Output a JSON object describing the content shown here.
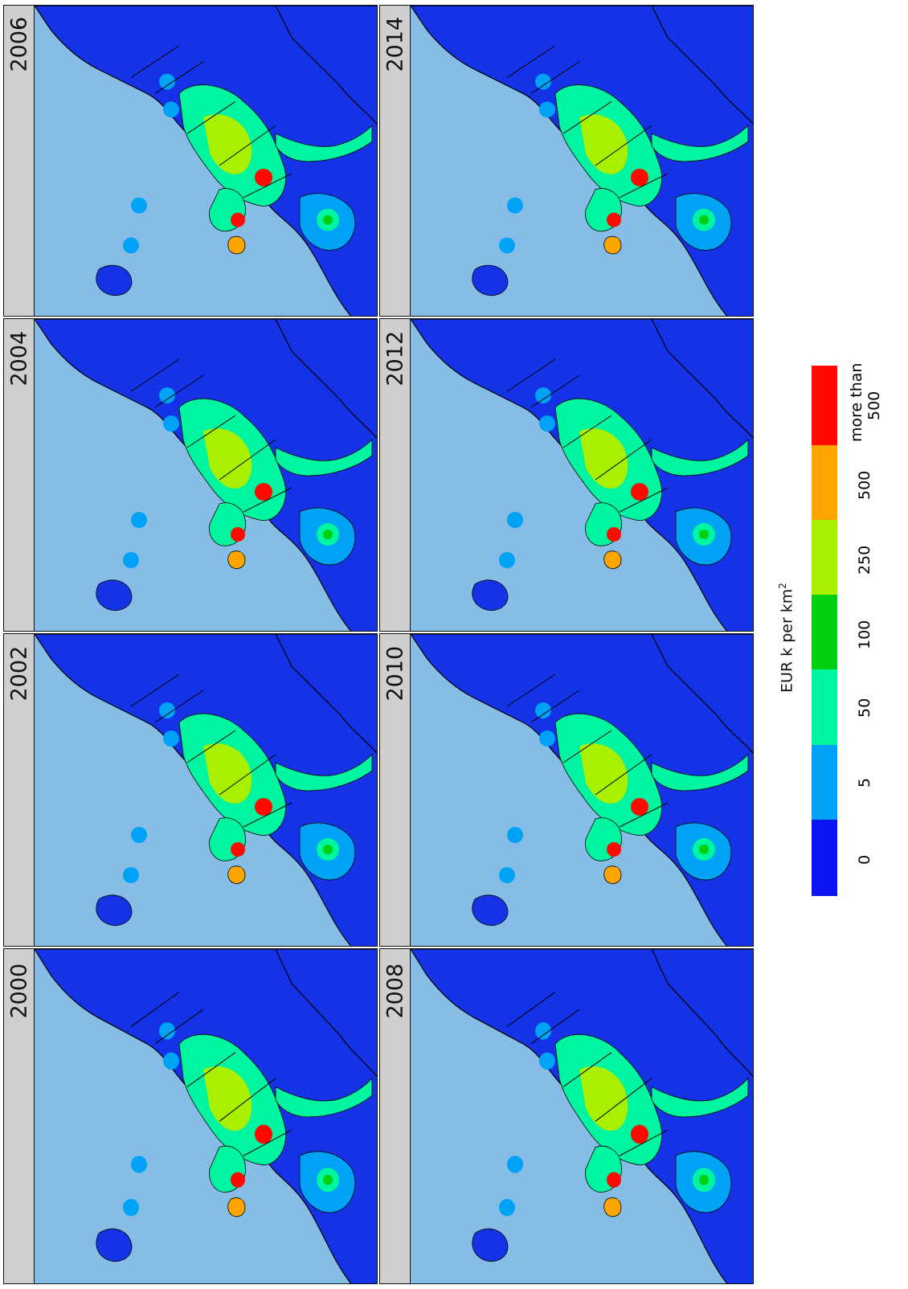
{
  "panels": [
    {
      "year": "2000"
    },
    {
      "year": "2002"
    },
    {
      "year": "2004"
    },
    {
      "year": "2006"
    },
    {
      "year": "2008"
    },
    {
      "year": "2010"
    },
    {
      "year": "2012"
    },
    {
      "year": "2014"
    }
  ],
  "legend": {
    "title": "EUR k per km",
    "title_superscript": "2",
    "classes": [
      {
        "label": "0",
        "color": "#0a14f0"
      },
      {
        "label": "5",
        "color": "#00a2f5"
      },
      {
        "label": "50",
        "color": "#00f5a0"
      },
      {
        "label": "100",
        "color": "#00d010"
      },
      {
        "label": "250",
        "color": "#a8f000"
      },
      {
        "label": "500",
        "color": "#ffa500"
      },
      {
        "label": "more than 500",
        "line1": "more than",
        "line2": "500",
        "color": "#ff0a00"
      }
    ]
  },
  "colors": {
    "sea": "#86bde6",
    "land_base": "#1432e6",
    "border": "#000000",
    "year_bar": "#cfcfcf"
  }
}
